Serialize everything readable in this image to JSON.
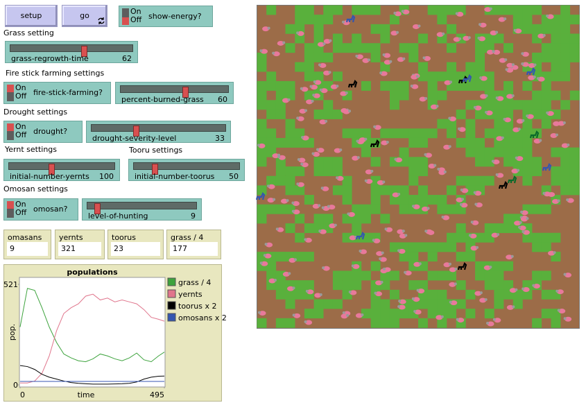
{
  "buttons": [
    {
      "label": "setup",
      "forever": false
    },
    {
      "label": "go",
      "forever": true
    }
  ],
  "switch_labels": {
    "on": "On",
    "off": "Off"
  },
  "switches": [
    {
      "name": "show-energy?",
      "on": false
    },
    {
      "name": "fire-stick-farming?",
      "on": true
    },
    {
      "name": "drought?",
      "on": true
    },
    {
      "name": "omosan?",
      "on": true
    }
  ],
  "notes": [
    "Grass setting",
    "Fire stick farming settings",
    "Drought settings",
    "Yernt settings",
    "Tooru settings",
    "Omosan settings"
  ],
  "sliders": [
    {
      "name": "grass-regrowth-time",
      "value": 62
    },
    {
      "name": "percent-burned-grass",
      "value": 60
    },
    {
      "name": "drought-severity-level",
      "value": 33
    },
    {
      "name": "initial-number-yernts",
      "value": 100
    },
    {
      "name": "initial-number-toorus",
      "value": 50
    },
    {
      "name": "level-of-hunting",
      "value": 9
    }
  ],
  "monitors": [
    {
      "name": "omasans",
      "value": 9
    },
    {
      "name": "yernts",
      "value": 321
    },
    {
      "name": "toorus",
      "value": 23
    },
    {
      "name": "grass / 4",
      "value": 177
    }
  ],
  "plot": {
    "type": "line",
    "title": "populations",
    "xlabel": "time",
    "ylabel": "pop.",
    "x": [
      0,
      25,
      50,
      75,
      100,
      125,
      150,
      175,
      200,
      225,
      250,
      275,
      300,
      325,
      350,
      375,
      400,
      425,
      450,
      475,
      495
    ],
    "series": [
      {
        "name": "grass / 4",
        "color": "#3da33d",
        "values": [
          300,
          500,
          490,
          400,
          300,
          220,
          160,
          140,
          125,
          120,
          135,
          160,
          150,
          135,
          125,
          140,
          165,
          130,
          120,
          150,
          170
        ]
      },
      {
        "name": "yernts",
        "color": "#e0758c",
        "values": [
          10,
          10,
          20,
          60,
          150,
          280,
          370,
          400,
          420,
          460,
          470,
          440,
          450,
          430,
          440,
          430,
          420,
          390,
          350,
          340,
          330
        ]
      },
      {
        "name": "toorus x 2",
        "color": "#000000",
        "values": [
          100,
          95,
          80,
          55,
          40,
          30,
          20,
          12,
          8,
          6,
          4,
          4,
          4,
          5,
          6,
          8,
          15,
          30,
          40,
          45,
          46
        ]
      },
      {
        "name": "omosans x 2",
        "color": "#3456b0",
        "values": [
          18,
          18,
          18,
          18,
          18,
          18,
          18,
          18,
          18,
          18,
          18,
          18,
          18,
          18,
          18,
          18,
          18,
          18,
          18,
          18,
          18
        ]
      }
    ],
    "xlim": [
      0,
      495
    ],
    "ylim": [
      0,
      521
    ],
    "xticks": [
      0,
      495
    ],
    "yticks": [
      0,
      521
    ]
  }
}
